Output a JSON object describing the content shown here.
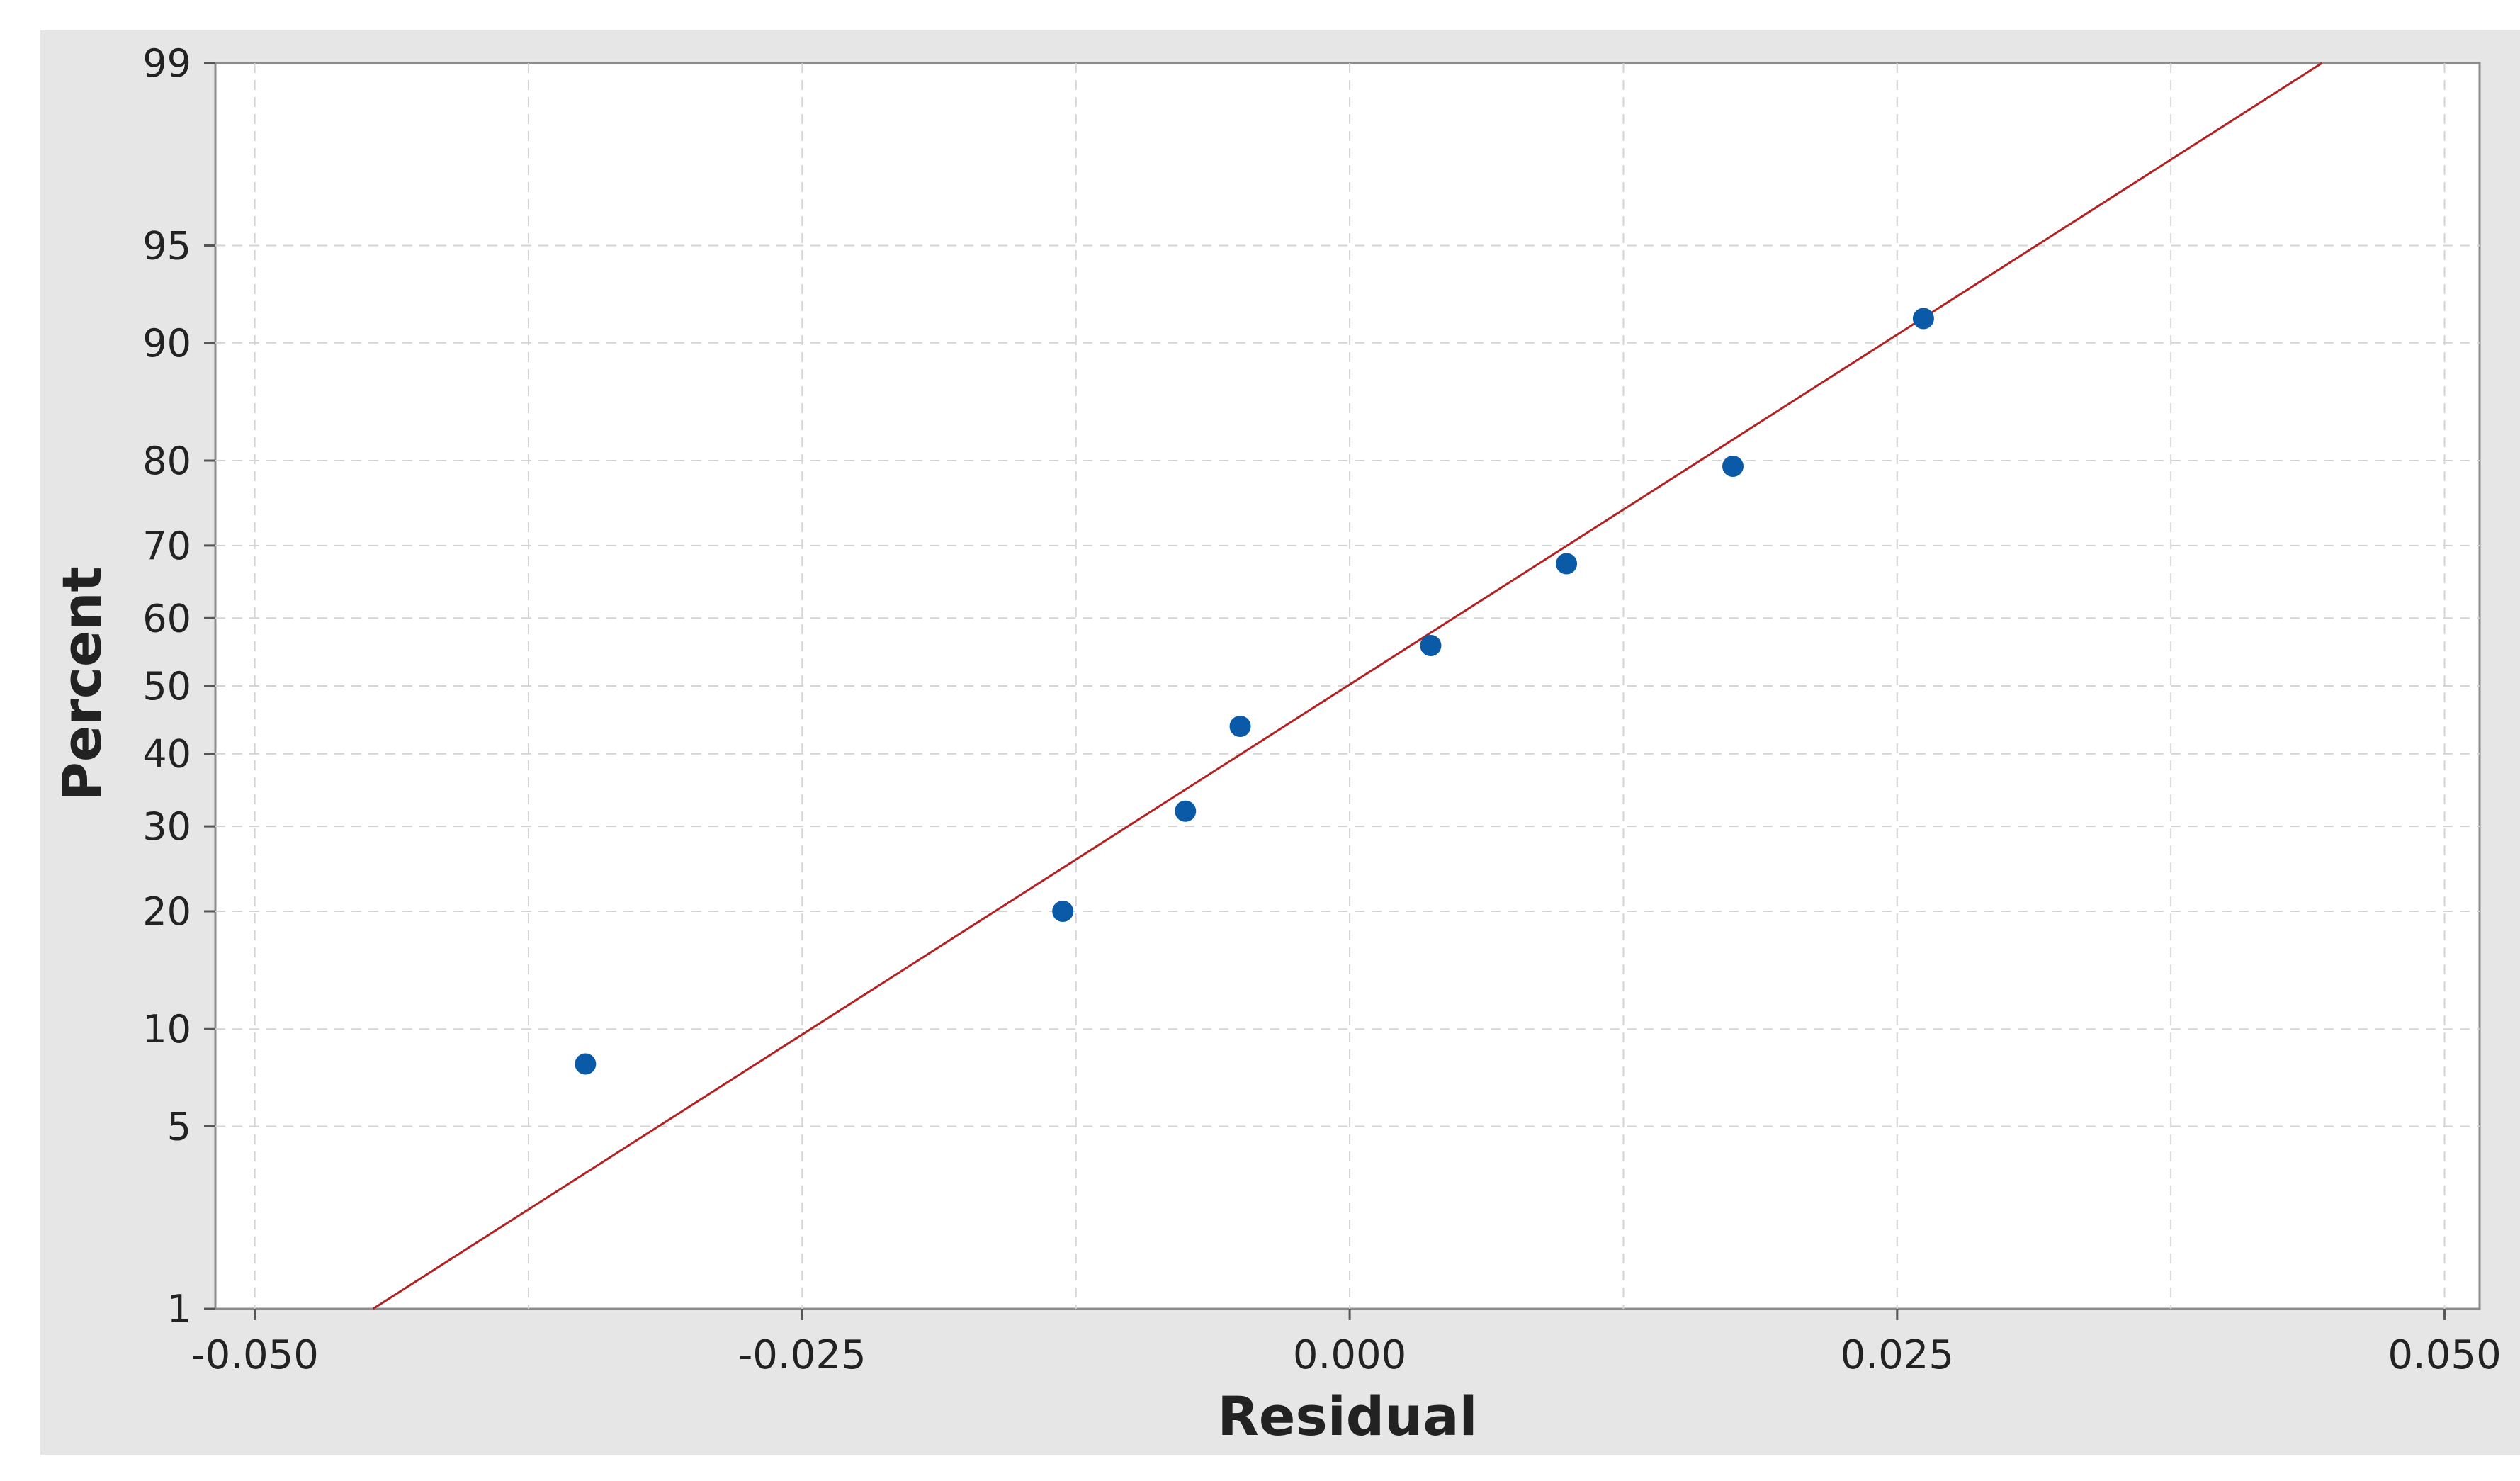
{
  "chart_data": {
    "type": "scatter",
    "title": "",
    "xlabel": "Residual",
    "ylabel": "Percent",
    "x_ticks": [
      "-0.050",
      "-0.025",
      "0.000",
      "0.025",
      "0.050"
    ],
    "x_tick_values": [
      -0.05,
      -0.025,
      0.0,
      0.025,
      0.05
    ],
    "y_ticks": [
      "1",
      "5",
      "10",
      "20",
      "30",
      "40",
      "50",
      "60",
      "70",
      "80",
      "90",
      "95",
      "99"
    ],
    "y_tick_values": [
      1,
      5,
      10,
      20,
      30,
      40,
      50,
      60,
      70,
      80,
      90,
      95,
      99
    ],
    "xlim": [
      -0.0518,
      0.0516
    ],
    "ylim": [
      1,
      99
    ],
    "y_scale": "normal-probability",
    "grid": true,
    "points": [
      {
        "x": -0.0349,
        "y": 7.9
      },
      {
        "x": -0.0131,
        "y": 20.0
      },
      {
        "x": -0.0075,
        "y": 32.0
      },
      {
        "x": -0.005,
        "y": 44.0
      },
      {
        "x": 0.0037,
        "y": 56.0
      },
      {
        "x": 0.0099,
        "y": 67.6
      },
      {
        "x": 0.0175,
        "y": 79.4
      },
      {
        "x": 0.0262,
        "y": 91.5
      }
    ],
    "fit_line": {
      "x": [
        -0.0446,
        0.0444
      ],
      "y": [
        1,
        99
      ]
    },
    "colors": {
      "points": "#0b5aa8",
      "fit_line": "#b22222",
      "outer_background": "#e6e6e6",
      "plot_background": "#ffffff",
      "grid": "#d4d4d4"
    }
  }
}
